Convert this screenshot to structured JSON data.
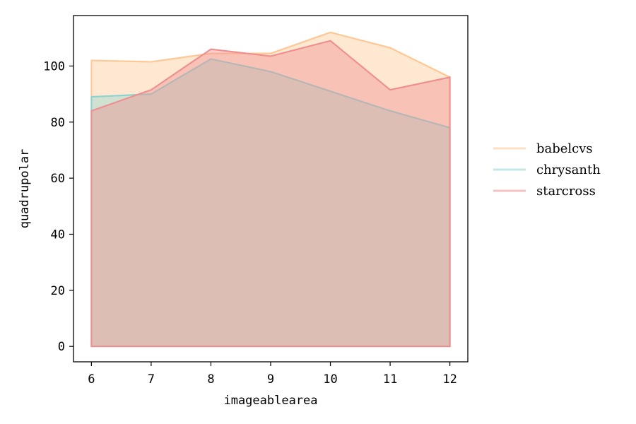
{
  "chart_data": {
    "type": "area",
    "x": [
      6,
      7,
      8,
      9,
      10,
      11,
      12
    ],
    "xlabel": "imageablearea",
    "ylabel": "quadrupolar",
    "xlim": [
      5.7,
      12.3
    ],
    "ylim": [
      -5.5,
      118
    ],
    "xticks": [
      6,
      7,
      8,
      9,
      10,
      11,
      12
    ],
    "yticks": [
      0,
      20,
      40,
      60,
      80,
      100
    ],
    "grid": false,
    "legend_position": "right",
    "series": [
      {
        "name": "babelcvs",
        "color": "#ffc794",
        "values": [
          102,
          101.5,
          104.5,
          104.5,
          112,
          106.5,
          96
        ]
      },
      {
        "name": "chrysanth",
        "color": "#8fd3cf",
        "values": [
          89,
          90,
          102.5,
          98,
          91,
          84,
          78
        ]
      },
      {
        "name": "starcross",
        "color": "#ef8f8f",
        "values": [
          84,
          91.5,
          106,
          103.5,
          109,
          91.5,
          96
        ]
      }
    ]
  }
}
